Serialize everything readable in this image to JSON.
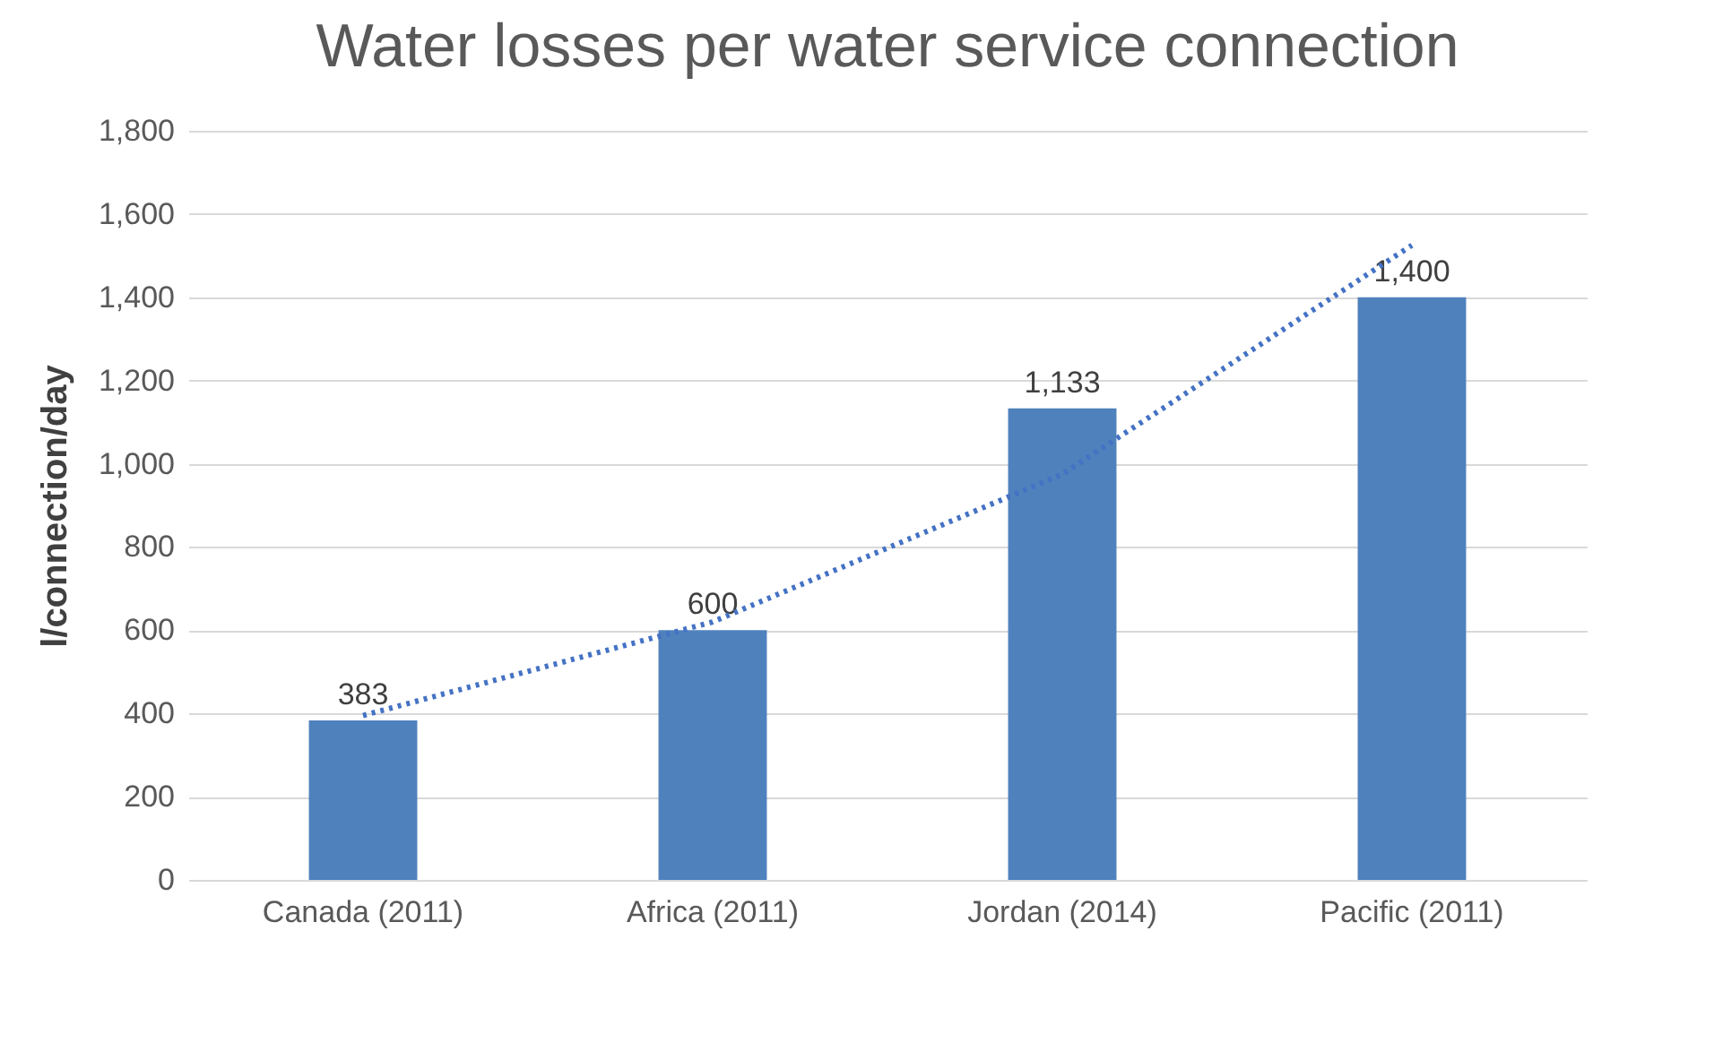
{
  "chart_data": {
    "type": "bar",
    "title": "Water losses per water service connection",
    "ylabel": "l/connection/day",
    "categories": [
      "Canada (2011)",
      "Africa (2011)",
      "Jordan (2014)",
      "Pacific (2011)"
    ],
    "series": [
      {
        "color": "#4f81bd",
        "values": [
          383,
          600,
          1133,
          1400
        ],
        "value_labels": [
          "383",
          "600",
          "1,133",
          "1,400"
        ]
      },
      {
        "type": "line",
        "values": [
          395,
          620,
          975,
          1525
        ],
        "color": "#4472c4",
        "line_style": "dotted",
        "marker": "none"
      }
    ],
    "ylim": [
      0,
      1800
    ],
    "yticks": [
      0,
      {
        "value": 200,
        "label": "200"
      },
      {
        "value": 400,
        "label": "400"
      },
      {
        "value": 600,
        "label": "600"
      },
      {
        "value": 800,
        "label": "800"
      },
      {
        "value": 1000,
        "label": "1,000"
      },
      {
        "value": 1200,
        "label": "1,200"
      },
      {
        "value": 1400,
        "label": "1,400"
      },
      {
        "value": 1600,
        "label": "1,600"
      },
      {
        "value": 1800,
        "label": "1,800"
      }
    ],
    "grid": "y"
  }
}
